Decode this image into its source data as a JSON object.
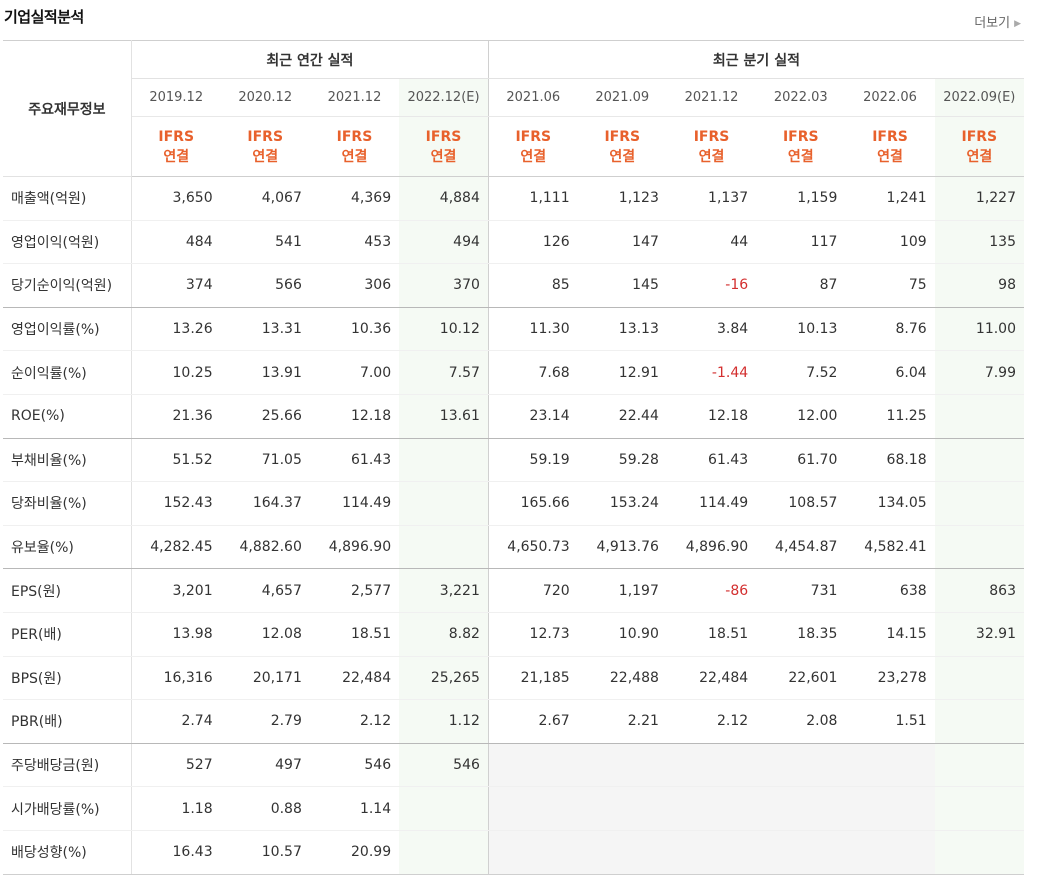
{
  "header": {
    "title": "기업실적분석",
    "more_label": "더보기"
  },
  "table": {
    "corner_label": "주요재무정보",
    "groups": {
      "annual": "최근 연간 실적",
      "quarterly": "최근 분기 실적"
    },
    "periods": [
      "2019.12",
      "2020.12",
      "2021.12",
      "2022.12(E)",
      "2021.06",
      "2021.09",
      "2021.12",
      "2022.03",
      "2022.06",
      "2022.09(E)"
    ],
    "standard_line1": "IFRS",
    "standard_line2": "연결",
    "rows": [
      {
        "label": "매출액(억원)",
        "values": [
          "3,650",
          "4,067",
          "4,369",
          "4,884",
          "1,111",
          "1,123",
          "1,137",
          "1,159",
          "1,241",
          "1,227"
        ]
      },
      {
        "label": "영업이익(억원)",
        "values": [
          "484",
          "541",
          "453",
          "494",
          "126",
          "147",
          "44",
          "117",
          "109",
          "135"
        ]
      },
      {
        "label": "당기순이익(억원)",
        "values": [
          "374",
          "566",
          "306",
          "370",
          "85",
          "145",
          "-16",
          "87",
          "75",
          "98"
        ]
      },
      {
        "label": "영업이익률(%)",
        "values": [
          "13.26",
          "13.31",
          "10.36",
          "10.12",
          "11.30",
          "13.13",
          "3.84",
          "10.13",
          "8.76",
          "11.00"
        ]
      },
      {
        "label": "순이익률(%)",
        "values": [
          "10.25",
          "13.91",
          "7.00",
          "7.57",
          "7.68",
          "12.91",
          "-1.44",
          "7.52",
          "6.04",
          "7.99"
        ]
      },
      {
        "label": "ROE(%)",
        "values": [
          "21.36",
          "25.66",
          "12.18",
          "13.61",
          "23.14",
          "22.44",
          "12.18",
          "12.00",
          "11.25",
          ""
        ]
      },
      {
        "label": "부채비율(%)",
        "values": [
          "51.52",
          "71.05",
          "61.43",
          "",
          "59.19",
          "59.28",
          "61.43",
          "61.70",
          "68.18",
          ""
        ]
      },
      {
        "label": "당좌비율(%)",
        "values": [
          "152.43",
          "164.37",
          "114.49",
          "",
          "165.66",
          "153.24",
          "114.49",
          "108.57",
          "134.05",
          ""
        ]
      },
      {
        "label": "유보율(%)",
        "values": [
          "4,282.45",
          "4,882.60",
          "4,896.90",
          "",
          "4,650.73",
          "4,913.76",
          "4,896.90",
          "4,454.87",
          "4,582.41",
          ""
        ]
      },
      {
        "label": "EPS(원)",
        "values": [
          "3,201",
          "4,657",
          "2,577",
          "3,221",
          "720",
          "1,197",
          "-86",
          "731",
          "638",
          "863"
        ]
      },
      {
        "label": "PER(배)",
        "values": [
          "13.98",
          "12.08",
          "18.51",
          "8.82",
          "12.73",
          "10.90",
          "18.51",
          "18.35",
          "14.15",
          "32.91"
        ]
      },
      {
        "label": "BPS(원)",
        "values": [
          "16,316",
          "20,171",
          "22,484",
          "25,265",
          "21,185",
          "22,488",
          "22,484",
          "22,601",
          "23,278",
          ""
        ]
      },
      {
        "label": "PBR(배)",
        "values": [
          "2.74",
          "2.79",
          "2.12",
          "1.12",
          "2.67",
          "2.21",
          "2.12",
          "2.08",
          "1.51",
          ""
        ]
      },
      {
        "label": "주당배당금(원)",
        "values": [
          "527",
          "497",
          "546",
          "546",
          "",
          "",
          "",
          "",
          "",
          ""
        ]
      },
      {
        "label": "시가배당률(%)",
        "values": [
          "1.18",
          "0.88",
          "1.14",
          "",
          "",
          "",
          "",
          "",
          "",
          ""
        ]
      },
      {
        "label": "배당성향(%)",
        "values": [
          "16.43",
          "10.57",
          "20.99",
          "",
          "",
          "",
          "",
          "",
          "",
          ""
        ]
      }
    ]
  }
}
